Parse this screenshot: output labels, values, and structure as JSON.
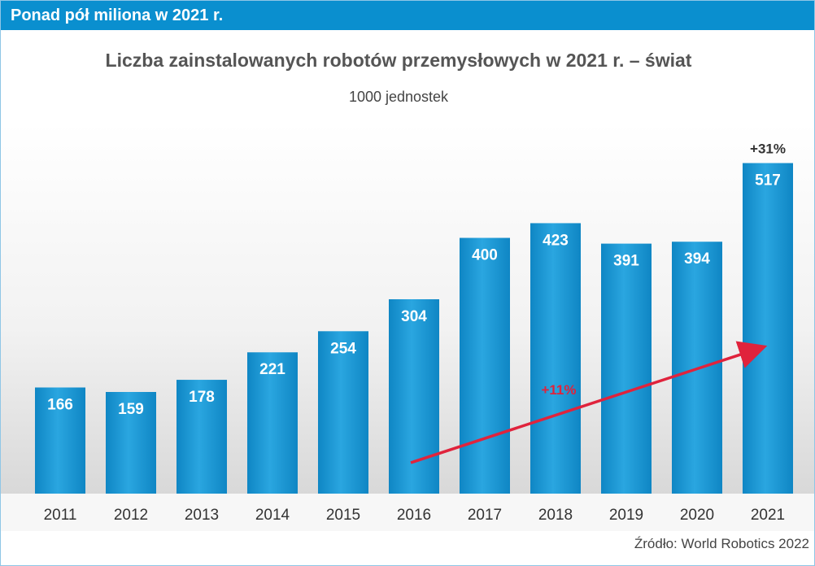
{
  "header": {
    "banner": "Ponad pół miliona w 2021 r."
  },
  "chart_data": {
    "type": "bar",
    "title": "Liczba zainstalowanych robotów przemysłowych w 2021 r. – świat",
    "subtitle": "1000 jednostek",
    "categories": [
      "2011",
      "2012",
      "2013",
      "2014",
      "2015",
      "2016",
      "2017",
      "2018",
      "2019",
      "2020",
      "2021"
    ],
    "values": [
      166,
      159,
      178,
      221,
      254,
      304,
      400,
      423,
      391,
      394,
      517
    ],
    "ylim": [
      0,
      580
    ],
    "grid": false,
    "legend": "none",
    "bar_color": "#1a9ad6",
    "annotations": [
      {
        "text": "+31%",
        "category": "2021",
        "color": "#333333"
      },
      {
        "text": "+11%",
        "category": "2018",
        "color": "#e0233c"
      }
    ],
    "trend_arrow": {
      "from": "2016",
      "to": "2021",
      "color": "#e0233c"
    }
  },
  "footer": {
    "source": "Źródło: World Robotics 2022"
  }
}
